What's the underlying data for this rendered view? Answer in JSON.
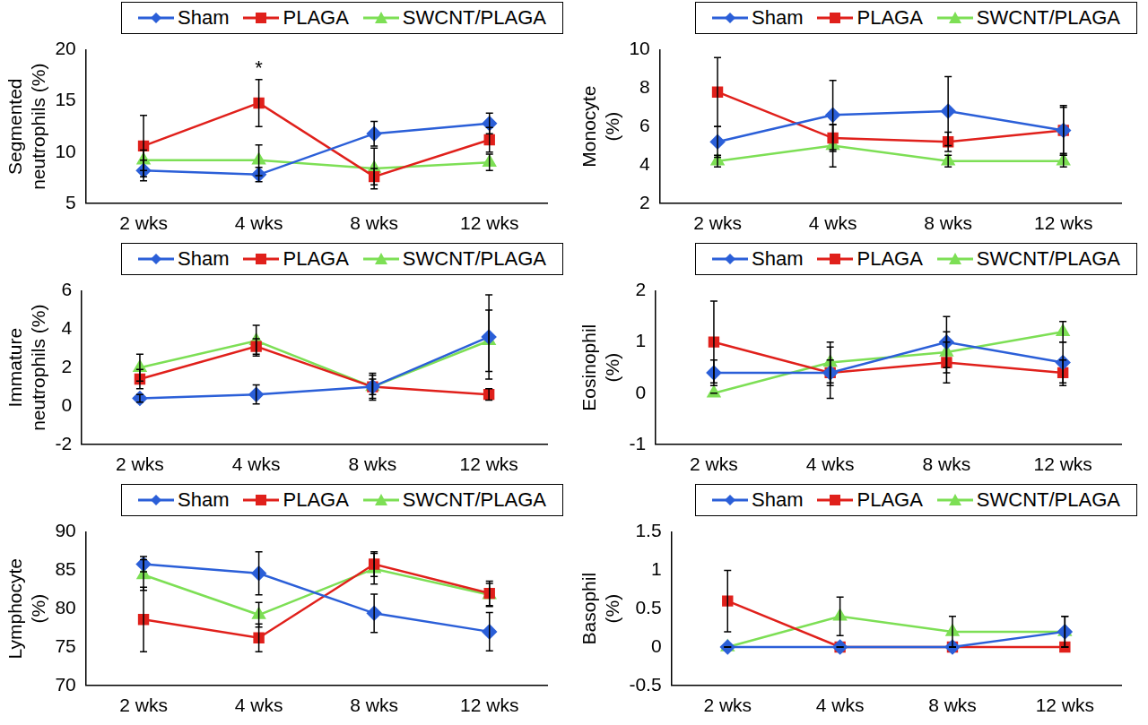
{
  "chart_data": [
    {
      "type": "line",
      "y_label": [
        "Segmented",
        "neutrophils (%)"
      ],
      "categories": [
        "2 wks",
        "4 wks",
        "8 wks",
        "12 wks"
      ],
      "ylim": [
        5,
        20
      ],
      "yticks": [
        5,
        10,
        15,
        20
      ],
      "grid": false,
      "legend": "top",
      "series": [
        {
          "name": "Sham",
          "color": "#2b5fd8",
          "marker": "diamond",
          "values": [
            8.2,
            7.8,
            11.8,
            12.8
          ],
          "errors": [
            1.0,
            0.7,
            1.2,
            1.0
          ]
        },
        {
          "name": "PLAGA",
          "color": "#e0201b",
          "marker": "square",
          "values": [
            10.6,
            14.8,
            7.6,
            11.2
          ],
          "errors": [
            3.0,
            2.3,
            0.8,
            1.2
          ]
        },
        {
          "name": "SWCNT/PLAGA",
          "color": "#7ddf55",
          "marker": "triangle",
          "values": [
            9.2,
            9.2,
            8.4,
            9.0
          ],
          "errors": [
            1.0,
            1.5,
            2.0,
            0.8
          ]
        }
      ],
      "annotations": [
        {
          "text": "*",
          "category": "4 wks",
          "series": "PLAGA"
        }
      ]
    },
    {
      "type": "line",
      "y_label": [
        "Monocyte",
        "(%)"
      ],
      "categories": [
        "2 wks",
        "4 wks",
        "8 wks",
        "12 wks"
      ],
      "ylim": [
        2,
        10
      ],
      "yticks": [
        2,
        4,
        6,
        8,
        10
      ],
      "grid": false,
      "legend": "top",
      "series": [
        {
          "name": "Sham",
          "color": "#2b5fd8",
          "marker": "diamond",
          "values": [
            5.2,
            6.6,
            6.8,
            5.8
          ],
          "errors": [
            0.8,
            1.8,
            1.8,
            1.2
          ]
        },
        {
          "name": "PLAGA",
          "color": "#e0201b",
          "marker": "square",
          "values": [
            7.8,
            5.4,
            5.2,
            5.8
          ],
          "errors": [
            1.8,
            0.7,
            0.5,
            1.3
          ]
        },
        {
          "name": "SWCNT/PLAGA",
          "color": "#7ddf55",
          "marker": "triangle",
          "values": [
            4.2,
            5.0,
            4.2,
            4.2
          ],
          "errors": [
            0.3,
            1.1,
            0.3,
            0.3
          ]
        }
      ]
    },
    {
      "type": "line",
      "y_label": [
        "Immature",
        "neutrophils (%)"
      ],
      "categories": [
        "2 wks",
        "4 wks",
        "8 wks",
        "12 wks"
      ],
      "ylim": [
        -2,
        6
      ],
      "yticks": [
        -2,
        0,
        2,
        4,
        6
      ],
      "grid": false,
      "legend": "top",
      "series": [
        {
          "name": "Sham",
          "color": "#2b5fd8",
          "marker": "diamond",
          "values": [
            0.4,
            0.6,
            1.0,
            3.6
          ],
          "errors": [
            0.2,
            0.5,
            0.6,
            2.2
          ]
        },
        {
          "name": "PLAGA",
          "color": "#e0201b",
          "marker": "square",
          "values": [
            1.4,
            3.1,
            1.0,
            0.6
          ],
          "errors": [
            0.5,
            0.4,
            0.4,
            0.3
          ]
        },
        {
          "name": "SWCNT/PLAGA",
          "color": "#7ddf55",
          "marker": "triangle",
          "values": [
            2.0,
            3.4,
            1.0,
            3.4
          ],
          "errors": [
            0.7,
            0.8,
            0.7,
            1.6
          ]
        }
      ]
    },
    {
      "type": "line",
      "y_label": [
        "Eosinophil",
        "(%)"
      ],
      "categories": [
        "2 wks",
        "4 wks",
        "8 wks",
        "12 wks"
      ],
      "ylim": [
        -1,
        2
      ],
      "yticks": [
        -1,
        0,
        1,
        2
      ],
      "grid": false,
      "legend": "top",
      "series": [
        {
          "name": "Sham",
          "color": "#2b5fd8",
          "marker": "diamond",
          "values": [
            0.4,
            0.4,
            1.0,
            0.6
          ],
          "errors": [
            0.25,
            0.5,
            0.5,
            0.4
          ]
        },
        {
          "name": "PLAGA",
          "color": "#e0201b",
          "marker": "square",
          "values": [
            1.0,
            0.4,
            0.6,
            0.4
          ],
          "errors": [
            0.8,
            0.25,
            0.4,
            0.25
          ]
        },
        {
          "name": "SWCNT/PLAGA",
          "color": "#7ddf55",
          "marker": "triangle",
          "values": [
            0.0,
            0.6,
            0.8,
            1.2
          ],
          "errors": [
            0.0,
            0.4,
            0.4,
            0.2
          ]
        }
      ]
    },
    {
      "type": "line",
      "y_label": [
        "Lymphocyte",
        "(%)"
      ],
      "categories": [
        "2 wks",
        "4 wks",
        "8 wks",
        "12 wks"
      ],
      "ylim": [
        70,
        90
      ],
      "yticks": [
        70,
        75,
        80,
        85,
        90
      ],
      "grid": false,
      "legend": "top",
      "series": [
        {
          "name": "Sham",
          "color": "#2b5fd8",
          "marker": "diamond",
          "values": [
            85.8,
            84.6,
            79.4,
            77.0
          ],
          "errors": [
            1.0,
            2.8,
            2.5,
            2.5
          ]
        },
        {
          "name": "PLAGA",
          "color": "#e0201b",
          "marker": "square",
          "values": [
            78.6,
            76.2,
            85.8,
            82.0
          ],
          "errors": [
            4.2,
            1.8,
            1.6,
            1.6
          ]
        },
        {
          "name": "SWCNT/PLAGA",
          "color": "#7ddf55",
          "marker": "triangle",
          "values": [
            84.4,
            79.2,
            85.2,
            81.8
          ],
          "errors": [
            2.0,
            1.6,
            2.0,
            1.5
          ]
        }
      ]
    },
    {
      "type": "line",
      "y_label": [
        "Basophil",
        "(%)"
      ],
      "categories": [
        "2 wks",
        "4 wks",
        "8 wks",
        "12 wks"
      ],
      "ylim": [
        -0.5,
        1.5
      ],
      "yticks": [
        -0.5,
        0,
        0.5,
        1,
        1.5
      ],
      "grid": false,
      "legend": "top",
      "series": [
        {
          "name": "Sham",
          "color": "#2b5fd8",
          "marker": "diamond",
          "values": [
            0,
            0,
            0,
            0.2
          ],
          "errors": [
            0,
            0,
            0,
            0.2
          ]
        },
        {
          "name": "PLAGA",
          "color": "#e0201b",
          "marker": "square",
          "values": [
            0.6,
            0,
            0,
            0
          ],
          "errors": [
            0.4,
            0,
            0,
            0
          ]
        },
        {
          "name": "SWCNT/PLAGA",
          "color": "#7ddf55",
          "marker": "triangle",
          "values": [
            0,
            0.4,
            0.2,
            0.2
          ],
          "errors": [
            0,
            0.25,
            0.2,
            0.2
          ]
        }
      ]
    }
  ]
}
